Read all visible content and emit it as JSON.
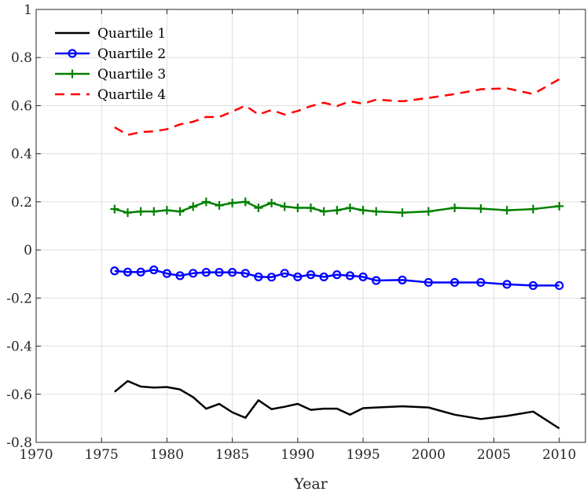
{
  "chart_data": {
    "type": "line",
    "title": "",
    "xlabel": "Year",
    "ylabel": "",
    "xlim": [
      1970,
      2012
    ],
    "ylim": [
      -0.8,
      1
    ],
    "xticks": [
      1970,
      1975,
      1980,
      1985,
      1990,
      1995,
      2000,
      2005,
      2010
    ],
    "yticks": [
      1,
      0.8,
      0.6,
      0.4,
      0.2,
      0,
      -0.2,
      -0.4,
      -0.6,
      -0.8
    ],
    "xtick_labels": [
      "1970",
      "1975",
      "1980",
      "1985",
      "1990",
      "1995",
      "2000",
      "2005",
      "2010"
    ],
    "ytick_labels": [
      "1",
      "0.8",
      "0.6",
      "0.4",
      "0.2",
      "0",
      "-0.2",
      "-0.4",
      "-0.6",
      "-0.8"
    ],
    "grid": true,
    "legend_position": "top-left",
    "series": [
      {
        "name": "Quartile 1",
        "color": "#000000",
        "style": "solid",
        "marker": "none",
        "x": [
          1976,
          1977,
          1978,
          1979,
          1980,
          1981,
          1982,
          1983,
          1984,
          1985,
          1986,
          1987,
          1988,
          1989,
          1990,
          1991,
          1992,
          1993,
          1994,
          1995,
          1996,
          1998,
          2000,
          2002,
          2004,
          2006,
          2008,
          2010
        ],
        "y": [
          -0.59,
          -0.545,
          -0.568,
          -0.572,
          -0.57,
          -0.58,
          -0.612,
          -0.66,
          -0.64,
          -0.675,
          -0.698,
          -0.625,
          -0.662,
          -0.652,
          -0.64,
          -0.665,
          -0.66,
          -0.66,
          -0.685,
          -0.658,
          -0.655,
          -0.65,
          -0.655,
          -0.685,
          -0.703,
          -0.69,
          -0.672,
          -0.742
        ]
      },
      {
        "name": "Quartile 2",
        "color": "#0000ff",
        "style": "solid",
        "marker": "circle",
        "x": [
          1976,
          1977,
          1978,
          1979,
          1980,
          1981,
          1982,
          1983,
          1984,
          1985,
          1986,
          1987,
          1988,
          1989,
          1990,
          1991,
          1992,
          1993,
          1994,
          1995,
          1996,
          1998,
          2000,
          2002,
          2004,
          2006,
          2008,
          2010
        ],
        "y": [
          -0.087,
          -0.092,
          -0.092,
          -0.083,
          -0.098,
          -0.107,
          -0.097,
          -0.093,
          -0.093,
          -0.093,
          -0.097,
          -0.112,
          -0.113,
          -0.097,
          -0.112,
          -0.103,
          -0.112,
          -0.103,
          -0.107,
          -0.112,
          -0.127,
          -0.125,
          -0.135,
          -0.135,
          -0.135,
          -0.143,
          -0.148,
          -0.148
        ]
      },
      {
        "name": "Quartile 3",
        "color": "#008000",
        "style": "solid",
        "marker": "plus",
        "x": [
          1976,
          1977,
          1978,
          1979,
          1980,
          1981,
          1982,
          1983,
          1984,
          1985,
          1986,
          1987,
          1988,
          1989,
          1990,
          1991,
          1992,
          1993,
          1994,
          1995,
          1996,
          1998,
          2000,
          2002,
          2004,
          2006,
          2008,
          2010
        ],
        "y": [
          0.17,
          0.155,
          0.16,
          0.16,
          0.165,
          0.16,
          0.18,
          0.2,
          0.185,
          0.195,
          0.2,
          0.175,
          0.195,
          0.18,
          0.175,
          0.175,
          0.16,
          0.165,
          0.175,
          0.165,
          0.16,
          0.155,
          0.16,
          0.175,
          0.172,
          0.165,
          0.17,
          0.182
        ]
      },
      {
        "name": "Quartile 4",
        "color": "#ff0000",
        "style": "dashed",
        "marker": "none",
        "x": [
          1976,
          1977,
          1978,
          1979,
          1980,
          1981,
          1982,
          1983,
          1984,
          1985,
          1986,
          1987,
          1988,
          1989,
          1990,
          1991,
          1992,
          1993,
          1994,
          1995,
          1996,
          1998,
          2000,
          2002,
          2004,
          2006,
          2008,
          2010
        ],
        "y": [
          0.51,
          0.478,
          0.49,
          0.493,
          0.502,
          0.522,
          0.533,
          0.553,
          0.553,
          0.575,
          0.6,
          0.563,
          0.582,
          0.563,
          0.578,
          0.598,
          0.612,
          0.598,
          0.618,
          0.608,
          0.625,
          0.618,
          0.632,
          0.648,
          0.668,
          0.672,
          0.648,
          0.71
        ]
      }
    ]
  }
}
